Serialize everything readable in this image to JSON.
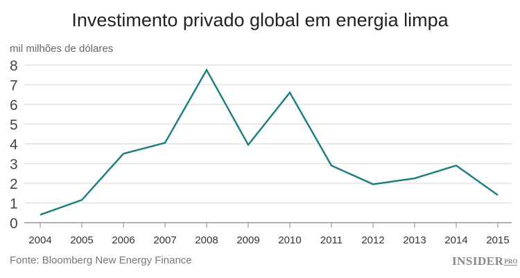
{
  "chart_data": {
    "type": "line",
    "title": "Investimento privado global em energia limpa",
    "ylabel": "mil milhões de dólares",
    "xlabel": "",
    "categories": [
      "2004",
      "2005",
      "2006",
      "2007",
      "2008",
      "2009",
      "2010",
      "2011",
      "2012",
      "2013",
      "2014",
      "2015"
    ],
    "values": [
      0.4,
      1.15,
      3.5,
      4.05,
      7.75,
      3.95,
      6.6,
      2.9,
      1.95,
      2.25,
      2.9,
      1.4
    ],
    "ylim": [
      0,
      8
    ],
    "yticks": [
      0,
      1,
      2,
      3,
      4,
      5,
      6,
      7,
      8
    ],
    "grid": true,
    "line_color": "#1e7f7f"
  },
  "source": "Fonte: Bloomberg New Energy Finance",
  "logo": {
    "text": "INSIDER",
    "sub": "PRO"
  }
}
